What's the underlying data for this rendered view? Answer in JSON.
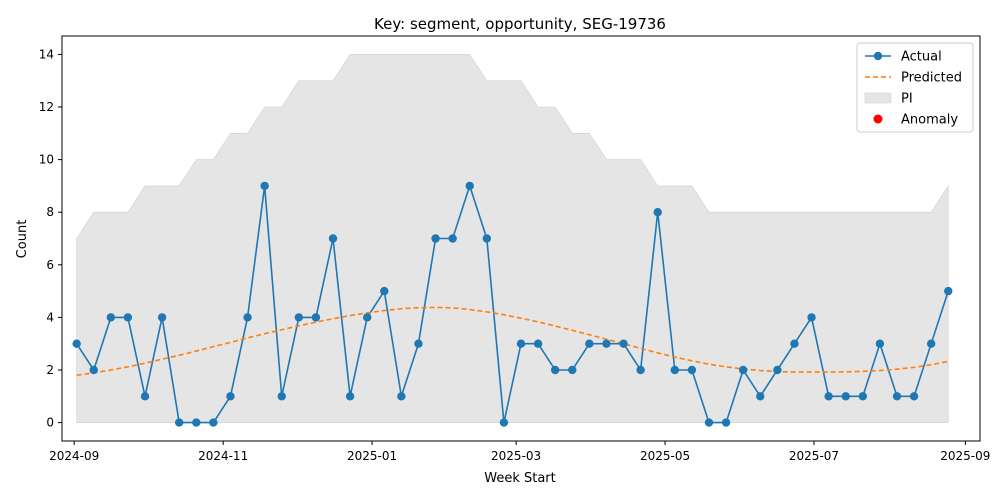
{
  "chart_data": {
    "type": "line",
    "title": "Key: segment, opportunity, SEG-19736",
    "xlabel": "Week Start",
    "ylabel": "Count",
    "ylim": [
      -0.7,
      14.7
    ],
    "xlim": [
      "2024-08-27",
      "2025-09-07"
    ],
    "y_ticks": [
      0,
      2,
      4,
      6,
      8,
      10,
      12,
      14
    ],
    "x_ticks": [
      {
        "date": "2024-09-01",
        "label": "2024-09"
      },
      {
        "date": "2024-11-01",
        "label": "2024-11"
      },
      {
        "date": "2025-01-01",
        "label": "2025-01"
      },
      {
        "date": "2025-03-01",
        "label": "2025-03"
      },
      {
        "date": "2025-05-01",
        "label": "2025-05"
      },
      {
        "date": "2025-07-01",
        "label": "2025-07"
      },
      {
        "date": "2025-09-01",
        "label": "2025-09"
      }
    ],
    "grid": false,
    "legend_position": "top-right",
    "legend": [
      {
        "name": "Actual",
        "kind": "line-marker",
        "color": "#1f77b4"
      },
      {
        "name": "Predicted",
        "kind": "dashed-line",
        "color": "#ff7f0e"
      },
      {
        "name": "PI",
        "kind": "patch",
        "color": "#e5e5e5"
      },
      {
        "name": "Anomaly",
        "kind": "dot",
        "color": "#ff0000"
      }
    ],
    "x": [
      "2024-09-02",
      "2024-09-09",
      "2024-09-16",
      "2024-09-23",
      "2024-09-30",
      "2024-10-07",
      "2024-10-14",
      "2024-10-21",
      "2024-10-28",
      "2024-11-04",
      "2024-11-11",
      "2024-11-18",
      "2024-11-25",
      "2024-12-02",
      "2024-12-09",
      "2024-12-16",
      "2024-12-23",
      "2024-12-30",
      "2025-01-06",
      "2025-01-13",
      "2025-01-20",
      "2025-01-27",
      "2025-02-03",
      "2025-02-10",
      "2025-02-17",
      "2025-02-24",
      "2025-03-03",
      "2025-03-10",
      "2025-03-17",
      "2025-03-24",
      "2025-03-31",
      "2025-04-07",
      "2025-04-14",
      "2025-04-21",
      "2025-04-28",
      "2025-05-05",
      "2025-05-12",
      "2025-05-19",
      "2025-05-26",
      "2025-06-02",
      "2025-06-09",
      "2025-06-16",
      "2025-06-23",
      "2025-06-30",
      "2025-07-07",
      "2025-07-14",
      "2025-07-21",
      "2025-07-28",
      "2025-08-04",
      "2025-08-11",
      "2025-08-18",
      "2025-08-25"
    ],
    "series": [
      {
        "name": "Actual",
        "color": "#1f77b4",
        "values": [
          3,
          2,
          4,
          4,
          1,
          4,
          0,
          0,
          0,
          1,
          4,
          9,
          1,
          4,
          4,
          7,
          1,
          4,
          5,
          1,
          3,
          7,
          7,
          9,
          7,
          0,
          3,
          3,
          2,
          2,
          3,
          3,
          3,
          2,
          8,
          2,
          2,
          0,
          0,
          2,
          1,
          2,
          3,
          4,
          1,
          1,
          1,
          3,
          1,
          1,
          3,
          5
        ]
      },
      {
        "name": "Predicted",
        "color": "#ff7f0e",
        "values": [
          1.8,
          1.89,
          2.0,
          2.12,
          2.26,
          2.41,
          2.56,
          2.72,
          2.89,
          3.05,
          3.22,
          3.38,
          3.53,
          3.68,
          3.82,
          3.95,
          4.07,
          4.17,
          4.26,
          4.33,
          4.37,
          4.38,
          4.36,
          4.3,
          4.21,
          4.1,
          3.97,
          3.83,
          3.67,
          3.51,
          3.34,
          3.17,
          3.0,
          2.82,
          2.65,
          2.49,
          2.35,
          2.22,
          2.12,
          2.04,
          1.98,
          1.94,
          1.92,
          1.92,
          1.92,
          1.93,
          1.95,
          1.98,
          2.03,
          2.1,
          2.2,
          2.33
        ]
      }
    ],
    "interval": {
      "name": "PI",
      "color": "#e5e5e5",
      "lower": [
        0,
        0,
        0,
        0,
        0,
        0,
        0,
        0,
        0,
        0,
        0,
        0,
        0,
        0,
        0,
        0,
        0,
        0,
        0,
        0,
        0,
        0,
        0,
        0,
        0,
        0,
        0,
        0,
        0,
        0,
        0,
        0,
        0,
        0,
        0,
        0,
        0,
        0,
        0,
        0,
        0,
        0,
        0,
        0,
        0,
        0,
        0,
        0,
        0,
        0,
        0,
        0
      ],
      "upper": [
        7,
        8,
        8,
        8,
        9,
        9,
        9,
        10,
        10,
        11,
        11,
        12,
        12,
        13,
        13,
        13,
        14,
        14,
        14,
        14,
        14,
        14,
        14,
        14,
        13,
        13,
        13,
        12,
        12,
        11,
        11,
        10,
        10,
        10,
        9,
        9,
        9,
        8,
        8,
        8,
        8,
        8,
        8,
        8,
        8,
        8,
        8,
        8,
        8,
        8,
        8,
        9
      ]
    },
    "anomalies": []
  }
}
